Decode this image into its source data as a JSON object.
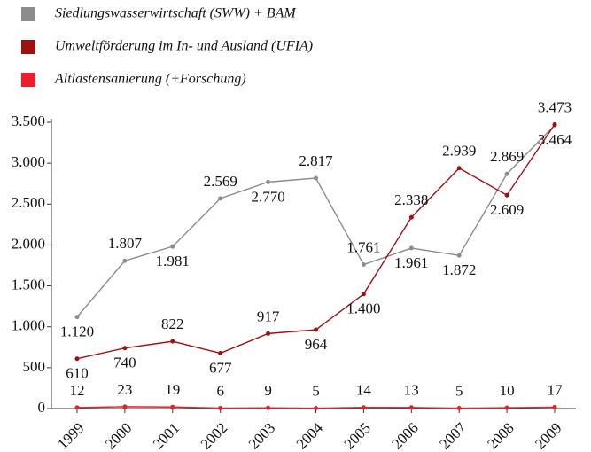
{
  "chart_data": {
    "type": "line",
    "categories": [
      "1999",
      "2000",
      "2001",
      "2002",
      "2003",
      "2004",
      "2005",
      "2006",
      "2007",
      "2008",
      "2009"
    ],
    "series": [
      {
        "name": "Siedlungswasserwirtschaft (SWW) + BAM",
        "color": "#8c8c8c",
        "values": [
          1120,
          1807,
          1981,
          2569,
          2770,
          2817,
          1761,
          1961,
          1872,
          2869,
          3464
        ],
        "value_labels": [
          "1.120",
          "1.807",
          "1.981",
          "2.569",
          "2.770",
          "2.817",
          "1.761",
          "1.961",
          "1.872",
          "2.869",
          "3.464"
        ]
      },
      {
        "name": "Umweltförderung im In- und Ausland (UFIA)",
        "color": "#a01010",
        "values": [
          610,
          740,
          822,
          677,
          917,
          964,
          1400,
          2338,
          2939,
          2609,
          3473
        ],
        "value_labels": [
          "610",
          "740",
          "822",
          "677",
          "917",
          "964",
          "1.400",
          "2.338",
          "2.939",
          "2.609",
          "3.473"
        ]
      },
      {
        "name": "Altlastensanierung (+Forschung)",
        "color": "#e8202a",
        "values": [
          12,
          23,
          19,
          6,
          9,
          5,
          14,
          13,
          5,
          10,
          17
        ]
      }
    ],
    "ylim": [
      0,
      3500
    ],
    "yticks": [
      0,
      500,
      {
        "value": 1000,
        "label": "1.000"
      },
      {
        "value": 1500,
        "label": "1.500"
      },
      {
        "value": 2000,
        "label": "2.000"
      },
      {
        "value": 2500,
        "label": "2.500"
      },
      {
        "value": 3000,
        "label": "3.000"
      },
      {
        "value": 3500,
        "label": "3.500"
      }
    ],
    "legend": "top-left"
  }
}
